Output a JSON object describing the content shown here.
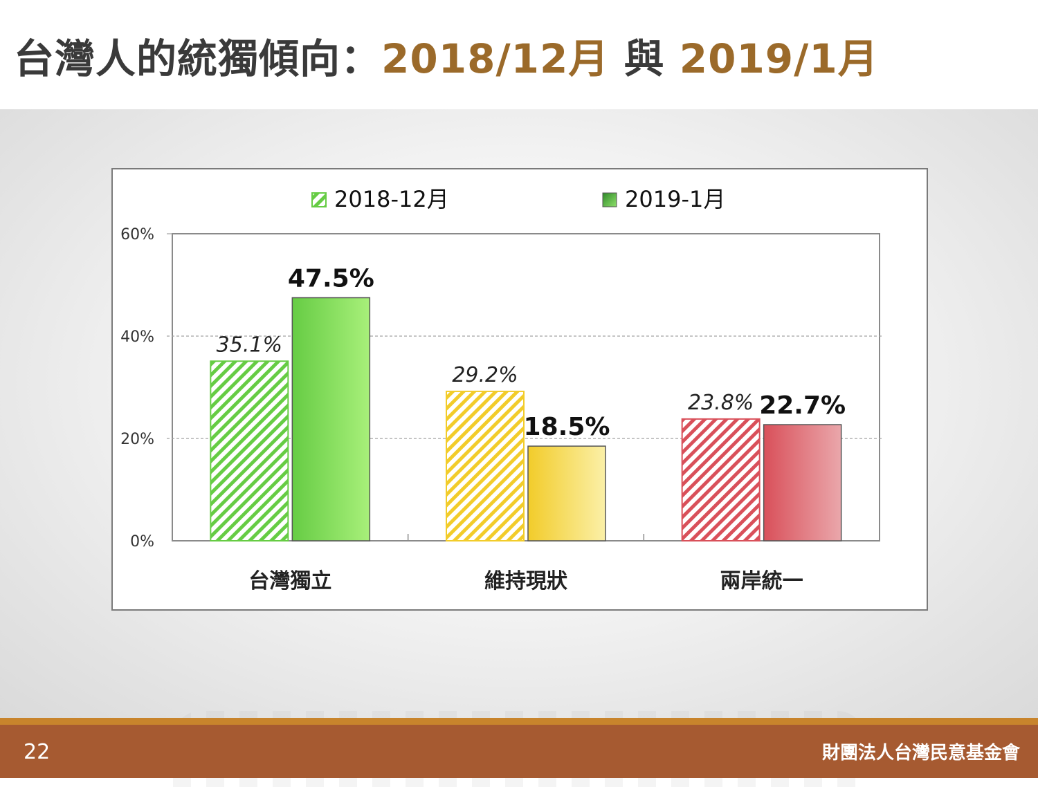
{
  "slide": {
    "title_main": "台灣人的統獨傾向：",
    "title_accent_1": "2018/12月",
    "title_connector": " 與 ",
    "title_accent_2": "2019/1月",
    "page_number": "22",
    "organization": "財團法人台灣民意基金會"
  },
  "chart_data": {
    "type": "bar",
    "categories": [
      "台灣獨立",
      "維持現狀",
      "兩岸統一"
    ],
    "series": [
      {
        "name": "2018-12月",
        "values": [
          35.1,
          29.2,
          23.8
        ],
        "labels": [
          "35.1%",
          "29.2%",
          "23.8%"
        ],
        "style": "hatched"
      },
      {
        "name": "2019-1月",
        "values": [
          47.5,
          18.5,
          22.7
        ],
        "labels": [
          "47.5%",
          "18.5%",
          "22.7%"
        ],
        "style": "solid"
      }
    ],
    "category_colors": [
      "#66cc44",
      "#f2cc2a",
      "#d9505a"
    ],
    "y_ticks": [
      "0%",
      "20%",
      "40%",
      "60%"
    ],
    "ylim": [
      0,
      60
    ],
    "grid": true,
    "legend": "top"
  }
}
